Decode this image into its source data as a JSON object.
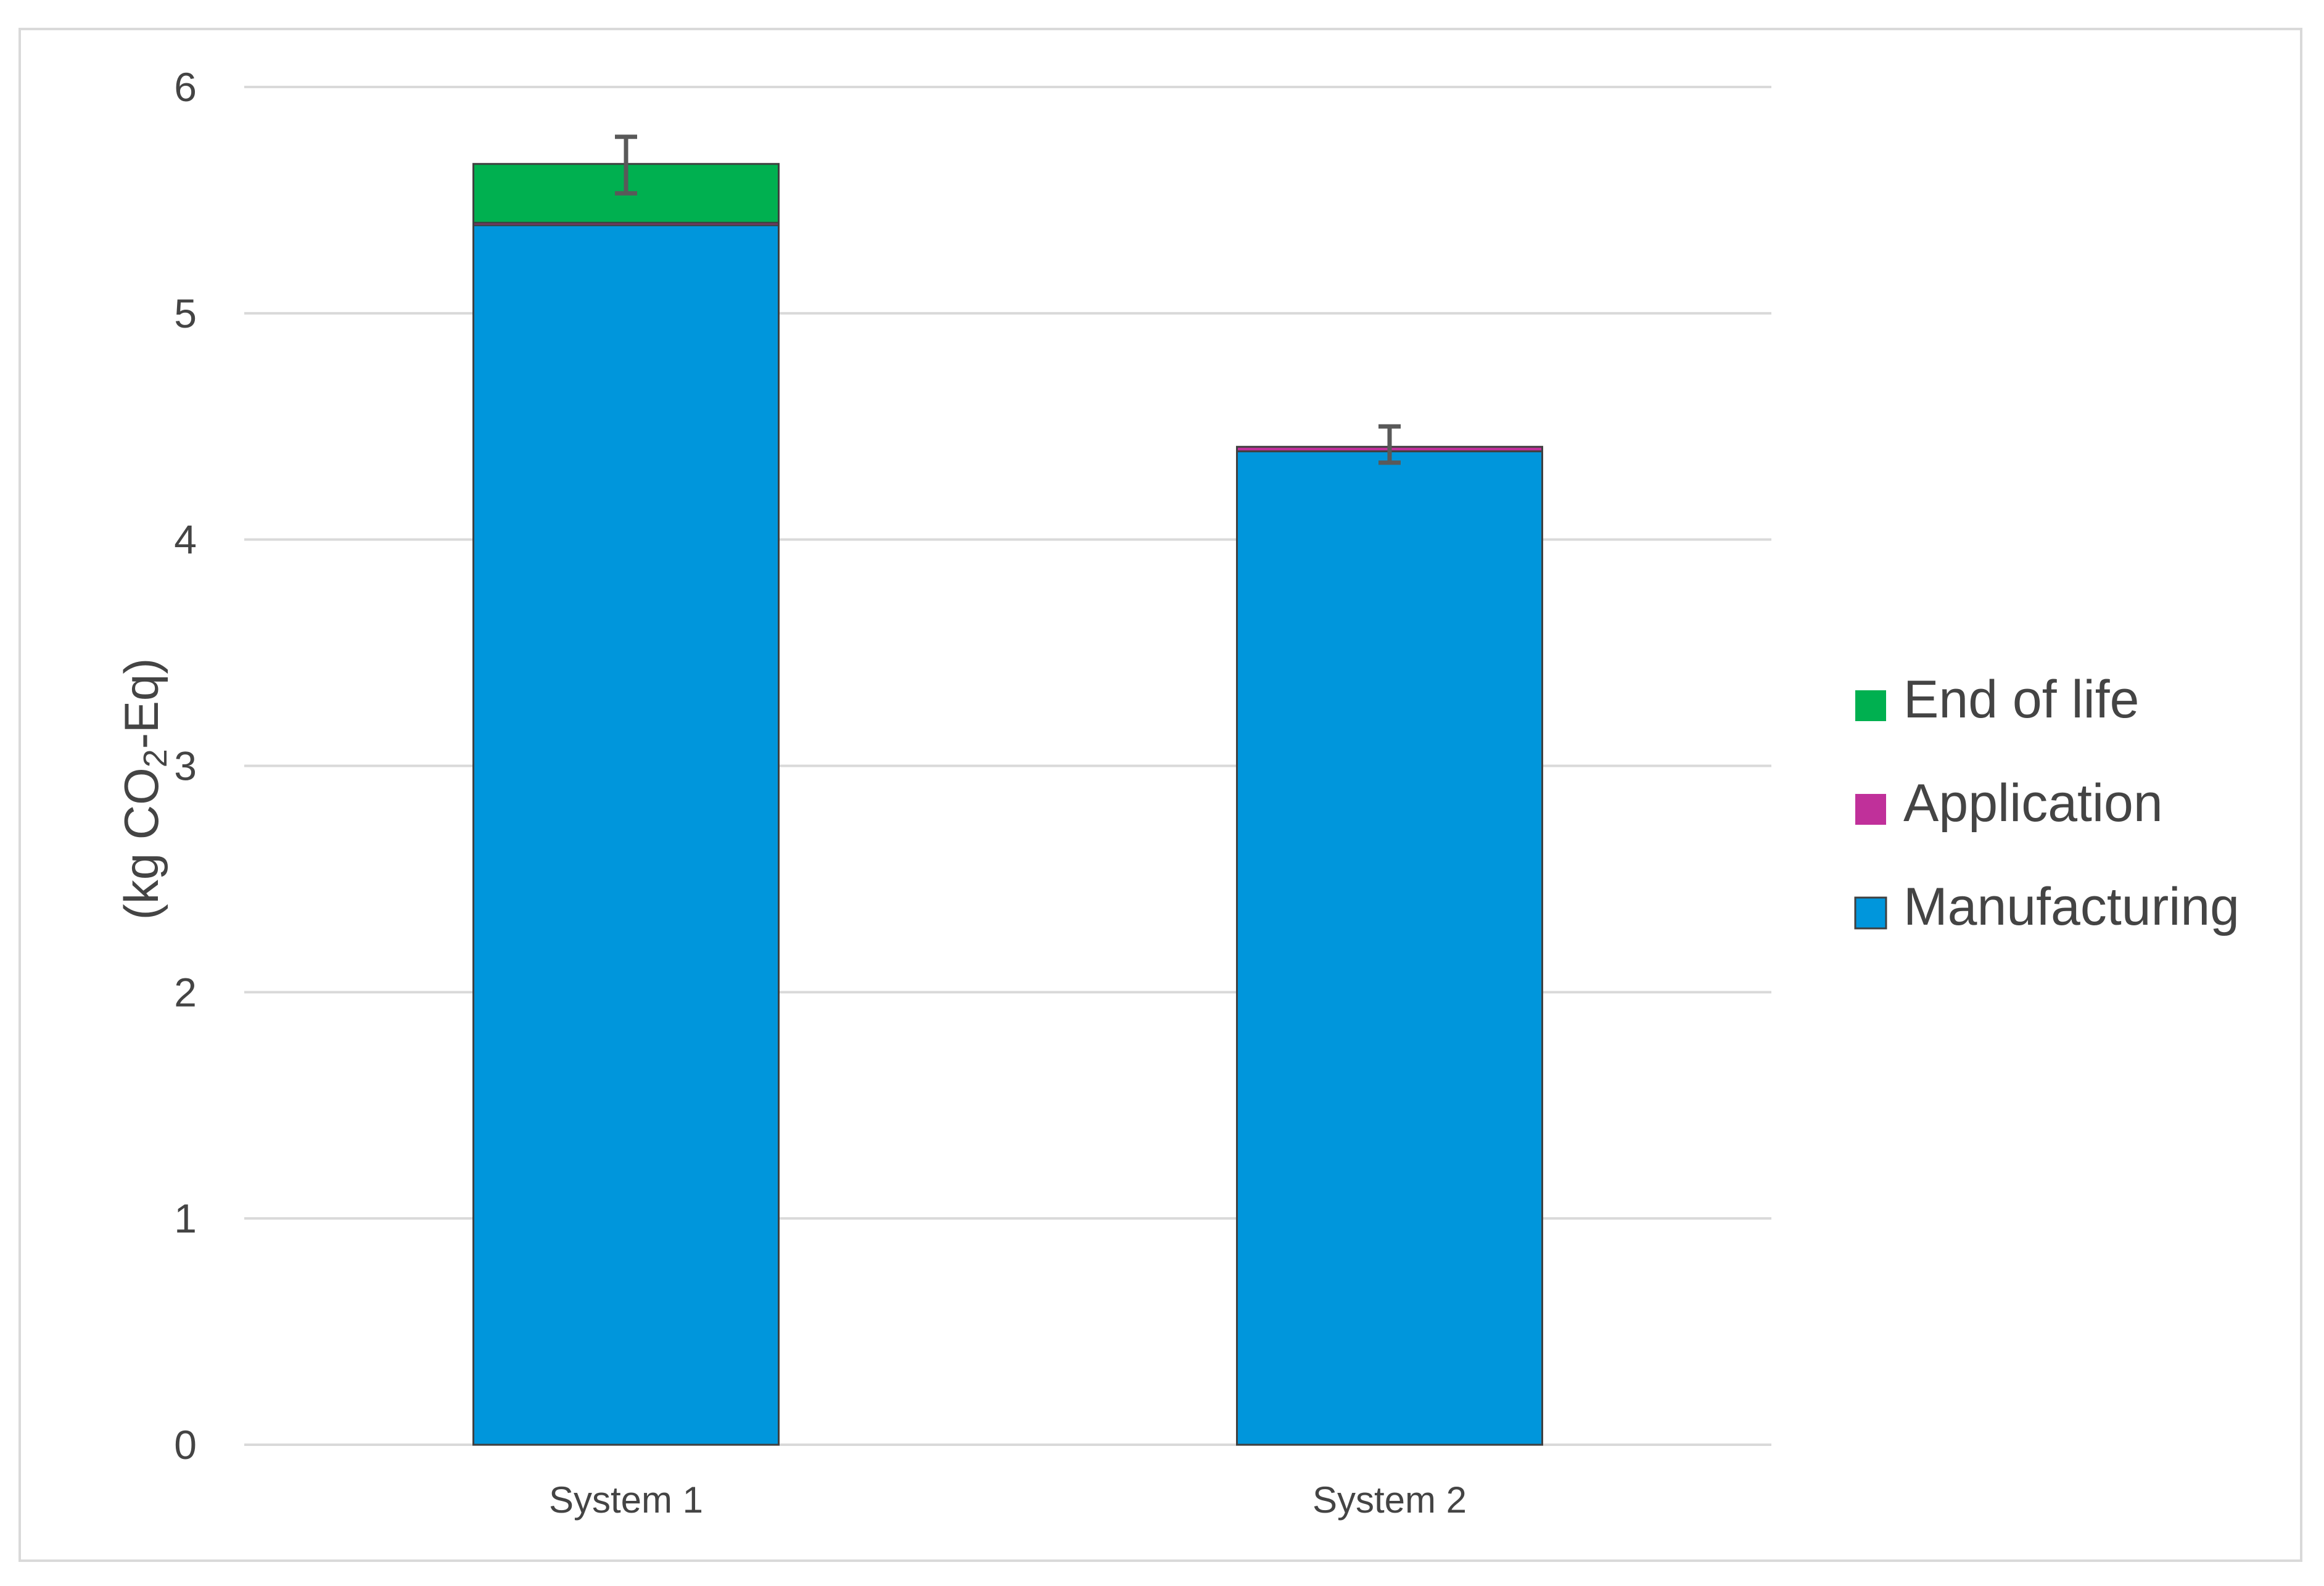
{
  "chart_data": {
    "type": "bar",
    "stacked": true,
    "title": "",
    "xlabel": "",
    "ylabel": "(kg CO2-Eq)",
    "ylabel_parts": {
      "before": "(kg CO",
      "subscript": "2",
      "after": "-Eq)"
    },
    "ylim": [
      0,
      6
    ],
    "yticks": [
      0,
      1,
      2,
      3,
      4,
      5,
      6
    ],
    "grid": true,
    "legend_position": "right",
    "categories": [
      "System 1",
      "System 2"
    ],
    "series": [
      {
        "name": "Manufacturing",
        "color": "#0096DC",
        "values": [
          5.39,
          4.39
        ]
      },
      {
        "name": "Application",
        "color": "#C0309A",
        "values": [
          0.01,
          0.02
        ]
      },
      {
        "name": "End of life",
        "color": "#00B050",
        "values": [
          0.26,
          0.0
        ]
      }
    ],
    "error_bars": [
      {
        "category": "System 1",
        "low": 5.53,
        "high": 5.78
      },
      {
        "category": "System 2",
        "low": 4.34,
        "high": 4.5
      }
    ]
  }
}
